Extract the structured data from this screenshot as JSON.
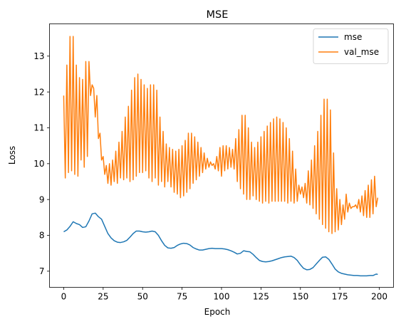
{
  "chart_data": {
    "type": "line",
    "title": "MSE",
    "xlabel": "Epoch",
    "ylabel": "Loss",
    "xlim": [
      -9,
      209
    ],
    "ylim": [
      6.55,
      13.9
    ],
    "xticks": [
      0,
      25,
      50,
      75,
      100,
      125,
      150,
      175,
      200
    ],
    "yticks": [
      7,
      8,
      9,
      10,
      11,
      12,
      13
    ],
    "grid": false,
    "legend_position": "top-right",
    "series": [
      {
        "name": "mse",
        "color": "#1f77b4",
        "points": [
          [
            0,
            8.1
          ],
          [
            2,
            8.15
          ],
          [
            4,
            8.25
          ],
          [
            6,
            8.38
          ],
          [
            8,
            8.33
          ],
          [
            10,
            8.3
          ],
          [
            12,
            8.22
          ],
          [
            14,
            8.24
          ],
          [
            16,
            8.4
          ],
          [
            18,
            8.6
          ],
          [
            20,
            8.62
          ],
          [
            22,
            8.52
          ],
          [
            24,
            8.45
          ],
          [
            26,
            8.25
          ],
          [
            28,
            8.05
          ],
          [
            30,
            7.93
          ],
          [
            32,
            7.85
          ],
          [
            34,
            7.81
          ],
          [
            36,
            7.8
          ],
          [
            38,
            7.82
          ],
          [
            40,
            7.86
          ],
          [
            42,
            7.95
          ],
          [
            44,
            8.05
          ],
          [
            46,
            8.12
          ],
          [
            48,
            8.12
          ],
          [
            50,
            8.1
          ],
          [
            52,
            8.09
          ],
          [
            54,
            8.1
          ],
          [
            56,
            8.12
          ],
          [
            58,
            8.1
          ],
          [
            60,
            8.0
          ],
          [
            62,
            7.85
          ],
          [
            64,
            7.72
          ],
          [
            66,
            7.65
          ],
          [
            68,
            7.64
          ],
          [
            70,
            7.66
          ],
          [
            72,
            7.72
          ],
          [
            74,
            7.76
          ],
          [
            76,
            7.78
          ],
          [
            78,
            7.77
          ],
          [
            80,
            7.73
          ],
          [
            82,
            7.66
          ],
          [
            84,
            7.62
          ],
          [
            86,
            7.59
          ],
          [
            88,
            7.59
          ],
          [
            90,
            7.61
          ],
          [
            92,
            7.63
          ],
          [
            94,
            7.64
          ],
          [
            96,
            7.63
          ],
          [
            98,
            7.63
          ],
          [
            100,
            7.63
          ],
          [
            102,
            7.62
          ],
          [
            104,
            7.6
          ],
          [
            106,
            7.57
          ],
          [
            108,
            7.53
          ],
          [
            110,
            7.48
          ],
          [
            112,
            7.5
          ],
          [
            114,
            7.57
          ],
          [
            116,
            7.55
          ],
          [
            118,
            7.54
          ],
          [
            120,
            7.47
          ],
          [
            122,
            7.38
          ],
          [
            124,
            7.3
          ],
          [
            126,
            7.27
          ],
          [
            128,
            7.26
          ],
          [
            130,
            7.27
          ],
          [
            132,
            7.29
          ],
          [
            134,
            7.32
          ],
          [
            136,
            7.35
          ],
          [
            138,
            7.38
          ],
          [
            140,
            7.4
          ],
          [
            142,
            7.41
          ],
          [
            144,
            7.42
          ],
          [
            146,
            7.38
          ],
          [
            148,
            7.3
          ],
          [
            150,
            7.18
          ],
          [
            152,
            7.08
          ],
          [
            154,
            7.04
          ],
          [
            156,
            7.05
          ],
          [
            158,
            7.1
          ],
          [
            160,
            7.2
          ],
          [
            162,
            7.3
          ],
          [
            164,
            7.39
          ],
          [
            166,
            7.4
          ],
          [
            168,
            7.33
          ],
          [
            170,
            7.2
          ],
          [
            172,
            7.06
          ],
          [
            174,
            6.98
          ],
          [
            176,
            6.94
          ],
          [
            178,
            6.92
          ],
          [
            180,
            6.9
          ],
          [
            182,
            6.89
          ],
          [
            184,
            6.88
          ],
          [
            186,
            6.88
          ],
          [
            188,
            6.87
          ],
          [
            190,
            6.87
          ],
          [
            192,
            6.87
          ],
          [
            194,
            6.88
          ],
          [
            196,
            6.88
          ],
          [
            198,
            6.92
          ],
          [
            199,
            6.91
          ]
        ]
      },
      {
        "name": "val_mse",
        "color": "#ff7f0e",
        "points": [
          [
            0,
            11.9
          ],
          [
            1,
            9.6
          ],
          [
            2,
            12.75
          ],
          [
            3,
            9.75
          ],
          [
            4,
            13.55
          ],
          [
            5,
            9.8
          ],
          [
            6,
            13.55
          ],
          [
            7,
            9.7
          ],
          [
            8,
            12.75
          ],
          [
            9,
            9.65
          ],
          [
            10,
            12.4
          ],
          [
            11,
            10.1
          ],
          [
            12,
            12.35
          ],
          [
            13,
            9.9
          ],
          [
            14,
            12.85
          ],
          [
            15,
            10.2
          ],
          [
            16,
            12.85
          ],
          [
            17,
            11.9
          ],
          [
            18,
            12.2
          ],
          [
            19,
            12.1
          ],
          [
            20,
            11.3
          ],
          [
            21,
            11.9
          ],
          [
            22,
            10.7
          ],
          [
            23,
            10.85
          ],
          [
            24,
            10.1
          ],
          [
            25,
            10.2
          ],
          [
            26,
            9.7
          ],
          [
            27,
            9.95
          ],
          [
            28,
            9.45
          ],
          [
            29,
            10.0
          ],
          [
            30,
            9.4
          ],
          [
            31,
            10.1
          ],
          [
            32,
            9.5
          ],
          [
            33,
            10.35
          ],
          [
            34,
            9.45
          ],
          [
            35,
            10.6
          ],
          [
            36,
            9.6
          ],
          [
            37,
            10.9
          ],
          [
            38,
            9.55
          ],
          [
            39,
            11.3
          ],
          [
            40,
            9.6
          ],
          [
            41,
            11.6
          ],
          [
            42,
            9.5
          ],
          [
            43,
            12.05
          ],
          [
            44,
            9.55
          ],
          [
            45,
            12.4
          ],
          [
            46,
            9.65
          ],
          [
            47,
            12.5
          ],
          [
            48,
            9.75
          ],
          [
            49,
            12.35
          ],
          [
            50,
            9.75
          ],
          [
            51,
            12.2
          ],
          [
            52,
            9.8
          ],
          [
            53,
            12.1
          ],
          [
            54,
            9.6
          ],
          [
            55,
            12.2
          ],
          [
            56,
            9.5
          ],
          [
            57,
            12.2
          ],
          [
            58,
            9.6
          ],
          [
            59,
            12.05
          ],
          [
            60,
            9.4
          ],
          [
            61,
            11.3
          ],
          [
            62,
            9.5
          ],
          [
            63,
            10.9
          ],
          [
            64,
            9.35
          ],
          [
            65,
            10.55
          ],
          [
            66,
            9.5
          ],
          [
            67,
            10.45
          ],
          [
            68,
            9.35
          ],
          [
            69,
            10.4
          ],
          [
            70,
            9.2
          ],
          [
            71,
            10.35
          ],
          [
            72,
            9.15
          ],
          [
            73,
            10.4
          ],
          [
            74,
            9.05
          ],
          [
            75,
            10.5
          ],
          [
            76,
            9.1
          ],
          [
            77,
            10.65
          ],
          [
            78,
            9.2
          ],
          [
            79,
            10.85
          ],
          [
            80,
            9.3
          ],
          [
            81,
            10.85
          ],
          [
            82,
            9.45
          ],
          [
            83,
            10.75
          ],
          [
            84,
            9.55
          ],
          [
            85,
            10.6
          ],
          [
            86,
            9.65
          ],
          [
            87,
            10.45
          ],
          [
            88,
            9.75
          ],
          [
            89,
            10.3
          ],
          [
            90,
            9.85
          ],
          [
            91,
            10.15
          ],
          [
            92,
            9.9
          ],
          [
            93,
            10.05
          ],
          [
            94,
            9.95
          ],
          [
            95,
            10.0
          ],
          [
            96,
            9.85
          ],
          [
            97,
            10.2
          ],
          [
            98,
            9.8
          ],
          [
            99,
            10.45
          ],
          [
            100,
            9.65
          ],
          [
            101,
            10.5
          ],
          [
            102,
            9.8
          ],
          [
            103,
            10.5
          ],
          [
            104,
            9.85
          ],
          [
            105,
            10.45
          ],
          [
            106,
            9.9
          ],
          [
            107,
            10.4
          ],
          [
            108,
            9.85
          ],
          [
            109,
            10.7
          ],
          [
            110,
            9.5
          ],
          [
            111,
            10.95
          ],
          [
            112,
            9.3
          ],
          [
            113,
            11.35
          ],
          [
            114,
            9.15
          ],
          [
            115,
            11.35
          ],
          [
            116,
            9.0
          ],
          [
            117,
            11.0
          ],
          [
            118,
            9.0
          ],
          [
            119,
            10.6
          ],
          [
            120,
            9.1
          ],
          [
            121,
            10.45
          ],
          [
            122,
            9.0
          ],
          [
            123,
            10.6
          ],
          [
            124,
            8.95
          ],
          [
            125,
            10.75
          ],
          [
            126,
            8.9
          ],
          [
            127,
            10.9
          ],
          [
            128,
            8.95
          ],
          [
            129,
            11.05
          ],
          [
            130,
            8.9
          ],
          [
            131,
            11.15
          ],
          [
            132,
            8.95
          ],
          [
            133,
            11.25
          ],
          [
            134,
            8.95
          ],
          [
            135,
            11.3
          ],
          [
            136,
            8.95
          ],
          [
            137,
            11.25
          ],
          [
            138,
            8.95
          ],
          [
            139,
            11.15
          ],
          [
            140,
            8.95
          ],
          [
            141,
            11.0
          ],
          [
            142,
            8.9
          ],
          [
            143,
            10.7
          ],
          [
            144,
            8.95
          ],
          [
            145,
            10.35
          ],
          [
            146,
            8.9
          ],
          [
            147,
            9.85
          ],
          [
            148,
            8.95
          ],
          [
            149,
            9.4
          ],
          [
            150,
            9.15
          ],
          [
            151,
            9.35
          ],
          [
            152,
            9.05
          ],
          [
            153,
            9.45
          ],
          [
            154,
            8.9
          ],
          [
            155,
            9.8
          ],
          [
            156,
            8.85
          ],
          [
            157,
            10.1
          ],
          [
            158,
            8.75
          ],
          [
            159,
            10.5
          ],
          [
            160,
            8.6
          ],
          [
            161,
            10.9
          ],
          [
            162,
            8.45
          ],
          [
            163,
            11.35
          ],
          [
            164,
            8.3
          ],
          [
            165,
            11.8
          ],
          [
            166,
            8.2
          ],
          [
            167,
            11.8
          ],
          [
            168,
            8.1
          ],
          [
            169,
            11.5
          ],
          [
            170,
            8.05
          ],
          [
            171,
            10.3
          ],
          [
            172,
            8.1
          ],
          [
            173,
            9.3
          ],
          [
            174,
            8.15
          ],
          [
            175,
            9.0
          ],
          [
            176,
            8.3
          ],
          [
            177,
            8.85
          ],
          [
            178,
            8.45
          ],
          [
            179,
            9.15
          ],
          [
            180,
            8.65
          ],
          [
            181,
            8.9
          ],
          [
            182,
            8.75
          ],
          [
            183,
            8.8
          ],
          [
            184,
            8.8
          ],
          [
            185,
            8.85
          ],
          [
            186,
            8.75
          ],
          [
            187,
            9.0
          ],
          [
            188,
            8.65
          ],
          [
            189,
            9.1
          ],
          [
            190,
            8.55
          ],
          [
            191,
            9.25
          ],
          [
            192,
            8.5
          ],
          [
            193,
            9.4
          ],
          [
            194,
            8.5
          ],
          [
            195,
            9.55
          ],
          [
            196,
            8.6
          ],
          [
            197,
            9.65
          ],
          [
            198,
            8.8
          ],
          [
            199,
            9.05
          ]
        ]
      }
    ]
  }
}
